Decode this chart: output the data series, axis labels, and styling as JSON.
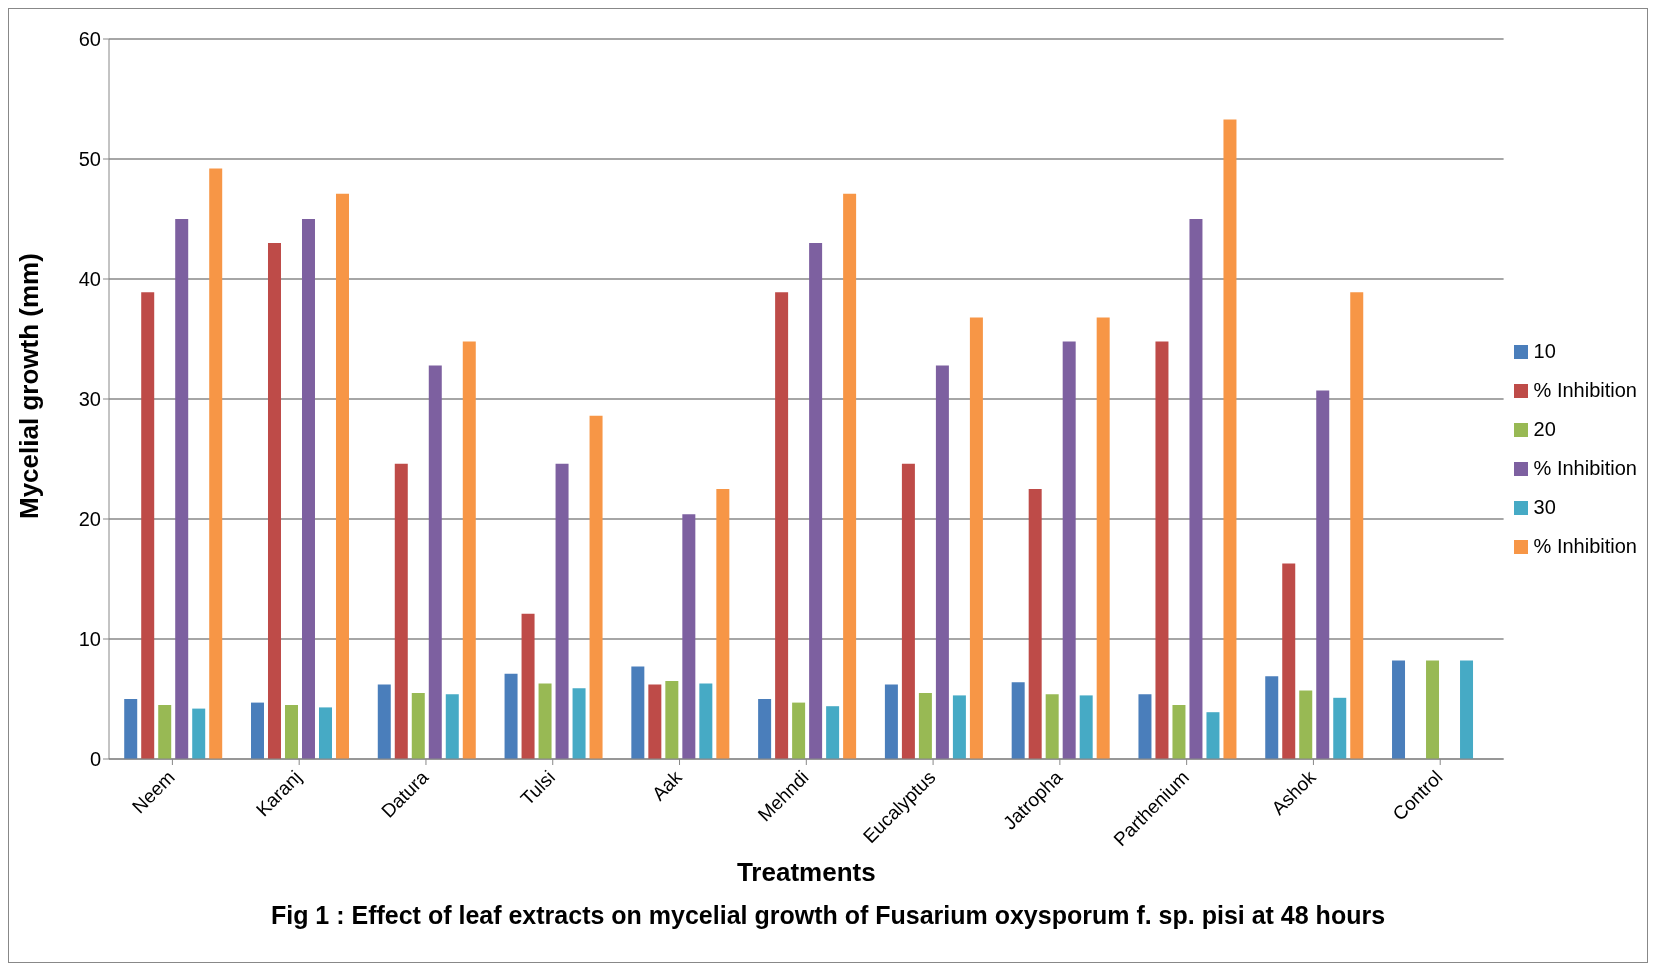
{
  "chart_data": {
    "type": "bar",
    "title": "Fig 1 : Effect of leaf extracts on mycelial growth of Fusarium oxysporum f. sp. pisi  at 48 hours",
    "xlabel": "Treatments",
    "ylabel": "Mycelial growth (mm)",
    "categories": [
      "Neem",
      "Karanj",
      "Datura",
      "Tulsi",
      "Aak",
      "Mehndi",
      "Eucalyptus",
      "Jatropha",
      "Parthenium",
      "Ashok",
      "Control"
    ],
    "series": [
      {
        "name": "10",
        "color": "#4a7ebb",
        "values": [
          5.0,
          4.7,
          6.2,
          7.1,
          7.7,
          5.0,
          6.2,
          6.4,
          5.4,
          6.9,
          8.2
        ]
      },
      {
        "name": "% Inhibition",
        "color": "#be4b48",
        "values": [
          38.9,
          43.0,
          24.6,
          12.1,
          6.2,
          38.9,
          24.6,
          22.5,
          34.8,
          16.3,
          null
        ]
      },
      {
        "name": "20",
        "color": "#98b954",
        "values": [
          4.5,
          4.5,
          5.5,
          6.3,
          6.5,
          4.7,
          5.5,
          5.4,
          4.5,
          5.7,
          8.2
        ]
      },
      {
        "name": "% Inhibition",
        "color": "#7d60a0",
        "values": [
          45.0,
          45.0,
          32.8,
          24.6,
          20.4,
          43.0,
          32.8,
          34.8,
          45.0,
          30.7,
          null
        ]
      },
      {
        "name": "30",
        "color": "#46aac5",
        "values": [
          4.2,
          4.3,
          5.4,
          5.9,
          6.3,
          4.4,
          5.3,
          5.3,
          3.9,
          5.1,
          8.2
        ]
      },
      {
        "name": "% Inhibition",
        "color": "#f79646",
        "values": [
          49.2,
          47.1,
          34.8,
          28.6,
          22.5,
          47.1,
          36.8,
          36.8,
          53.3,
          38.9,
          null
        ]
      }
    ],
    "ylim": [
      0,
      60
    ],
    "yticks": [
      0,
      10,
      20,
      30,
      40,
      50,
      60
    ],
    "grid": "y",
    "legend": "right"
  }
}
